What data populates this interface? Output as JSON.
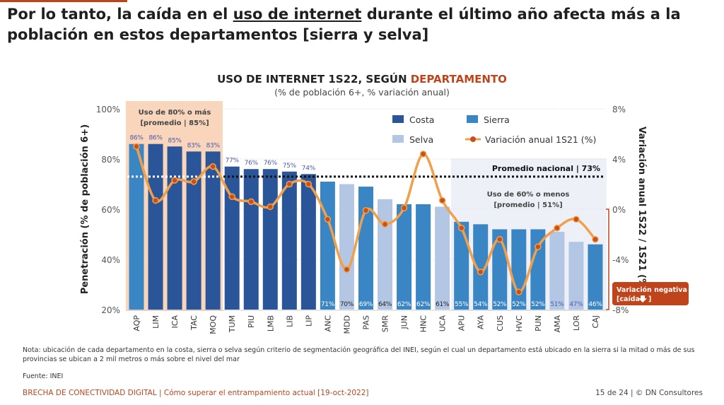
{
  "headline": {
    "part1": "Por lo tanto, la caída en el ",
    "underlined": "uso de internet",
    "part2": " durante el último año afecta más a la población en estos departamentos [sierra y selva]"
  },
  "colors": {
    "costa": "#2a5598",
    "sierra": "#3a86c4",
    "selva": "#b3c6e4",
    "line": "#f0a04b",
    "marker": "#c9501c",
    "accent": "#c0441b",
    "high_box": "#f9d5bb",
    "low_box": "#eef0f8"
  },
  "chart_data": {
    "type": "bar+line",
    "title_part1": "USO DE INTERNET 1S22, SEGÚN ",
    "title_accent": "DEPARTAMENTO",
    "subtitle": "(% de población 6+, % variación anual)",
    "ylabel": "Penetración (% de población 6+)",
    "y2label": "Variación anual 1S22 / 1S21 (%)",
    "ylim": [
      20,
      100
    ],
    "y2lim": [
      -8,
      8
    ],
    "yticks": [
      "20%",
      "40%",
      "60%",
      "80%",
      "100%"
    ],
    "y2ticks": [
      "-8%",
      "-4%",
      "0%",
      "4%",
      "8%"
    ],
    "grid": true,
    "legend": [
      "Costa",
      "Sierra",
      "Selva",
      "Variación anual 1S21 (%)"
    ],
    "legend_position": "top-right",
    "categories": [
      "AQP",
      "LIM",
      "ICA",
      "TAC",
      "MOQ",
      "TUM",
      "PIU",
      "LMB",
      "LIB",
      "LIP",
      "ANC",
      "MDD",
      "PAS",
      "SMR",
      "JUN",
      "HNC",
      "UCA",
      "APU",
      "AYA",
      "CUS",
      "HVC",
      "PUN",
      "AMA",
      "LOR",
      "CAJ"
    ],
    "region": [
      "Sierra",
      "Costa",
      "Costa",
      "Costa",
      "Costa",
      "Costa",
      "Costa",
      "Costa",
      "Costa",
      "Costa",
      "Sierra",
      "Selva",
      "Sierra",
      "Selva",
      "Sierra",
      "Sierra",
      "Selva",
      "Sierra",
      "Sierra",
      "Sierra",
      "Sierra",
      "Sierra",
      "Selva",
      "Selva",
      "Sierra"
    ],
    "values": [
      86,
      86,
      85,
      83,
      83,
      77,
      76,
      76,
      75,
      74,
      71,
      70,
      69,
      64,
      62,
      62,
      61,
      55,
      54,
      52,
      52,
      52,
      51,
      47,
      46
    ],
    "value_labels": [
      "86%",
      "86%",
      "85%",
      "83%",
      "83%",
      "77%",
      "76%",
      "76%",
      "75%",
      "74%",
      "71%",
      "70%",
      "69%",
      "64%",
      "62%",
      "62%",
      "61%",
      "55%",
      "54%",
      "52%",
      "52%",
      "52%",
      "51%",
      "47%",
      "46%"
    ],
    "variation": [
      5.0,
      0.7,
      2.3,
      2.2,
      3.4,
      1.0,
      0.6,
      0.2,
      2.0,
      2.0,
      -0.8,
      -4.8,
      -0.1,
      -1.2,
      0.1,
      4.4,
      0.7,
      -1.5,
      -5.0,
      -2.4,
      -6.6,
      -3.0,
      -1.5,
      -0.8,
      -2.4
    ],
    "national_average": 73,
    "annotations": {
      "national_avg": "Promedio nacional | 73%",
      "high_line1": "Uso de 80% o más",
      "high_line2": "[promedio | 85%]",
      "low_line1": "Uso de 60% o menos",
      "low_line2": "[promedio | 51%]",
      "neg_line1": "Variación negativa",
      "neg_line2": "[caída"
    }
  },
  "note": "Nota: ubicación de cada departamento en la costa, sierra o selva según criterio de segmentación geográfica del INEI, según el cual un departamento está ubicado en la sierra si la mitad o más de sus provincias se ubican a 2 mil metros o más sobre el nivel del mar",
  "source": "Fuente: INEI",
  "footer": {
    "left": "BRECHA DE CONECTIVIDAD DIGITAL | Cómo superar el entrampamiento actual [19-oct-2022]",
    "right": "15 de 24 | © DN Consultores"
  }
}
